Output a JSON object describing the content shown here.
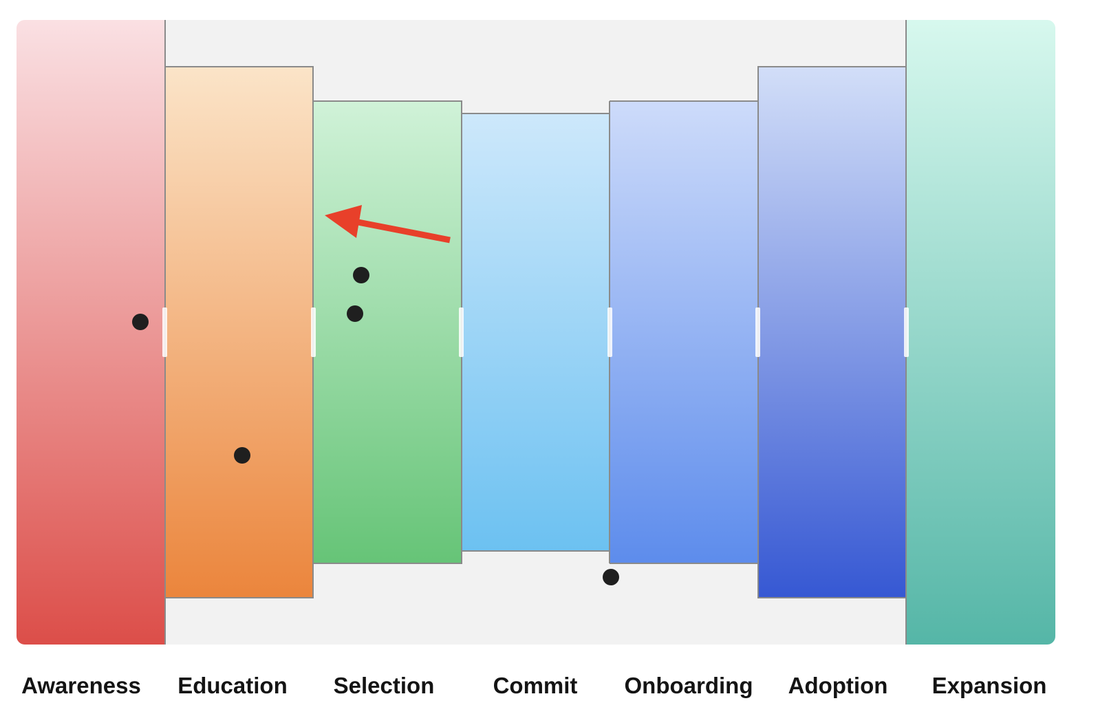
{
  "stages": [
    {
      "label": "Awareness",
      "color_top": "#fae0e3",
      "color_bottom": "#dc4e49"
    },
    {
      "label": "Education",
      "color_top": "#fbe4c8",
      "color_bottom": "#eb853c"
    },
    {
      "label": "Selection",
      "color_top": "#d0f2d8",
      "color_bottom": "#66c477"
    },
    {
      "label": "Commit",
      "color_top": "#cde8fb",
      "color_bottom": "#6cc1f1"
    },
    {
      "label": "Onboarding",
      "color_top": "#cddbfa",
      "color_bottom": "#5d8cec"
    },
    {
      "label": "Adoption",
      "color_top": "#d2def8",
      "color_bottom": "#3658d3"
    },
    {
      "label": "Expansion",
      "color_top": "#d7f8ee",
      "color_bottom": "#55b6a7"
    }
  ],
  "background_color": "#f2f2f2",
  "marker_color": "#1f1f1f",
  "annotation": {
    "type": "arrow",
    "color": "#e8402a"
  }
}
